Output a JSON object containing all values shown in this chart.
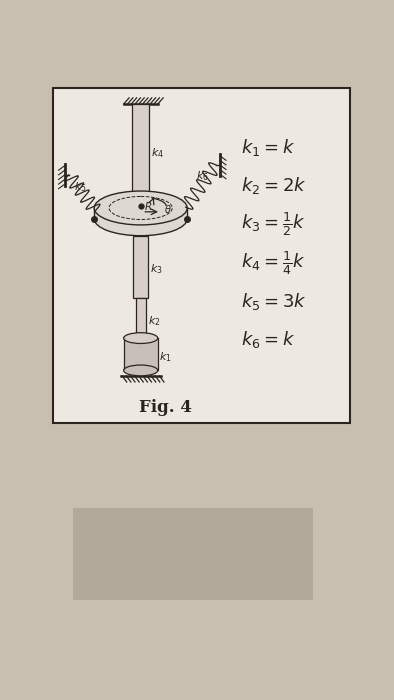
{
  "bg_color": "#c8bfb0",
  "panel_bg": "#ede8e0",
  "panel_shadow_color": "#9a9080",
  "fig_label": "Fig. 4",
  "line_color": "#2a2520",
  "shaft_fill": "#d8d0c8",
  "disk_fill": "#ddd8d0",
  "ground_fill": "#c8c0b8",
  "equations": [
    [
      "k_1 = k",
      "k_{1} = k"
    ],
    [
      "k_2 = 2k",
      "k_{2} = 2k"
    ],
    [
      "k_3 = \\frac{1}{2}k",
      "k_{3}=\\tfrac{1}{2}k"
    ],
    [
      "k_4 = \\frac{1}{4}k",
      "k_{4}=\\tfrac{1}{4}k"
    ],
    [
      "k_5 = 3k",
      "k_{5} = 3k"
    ],
    [
      "k_6 = k",
      "k_{6} = k"
    ]
  ],
  "eq_latex": [
    "$k_1 = k$",
    "$k_2 = 2k$",
    "$k_3 = \\frac{1}{2}k$",
    "$k_4 = \\frac{1}{4}k$",
    "$k_5 = 3k$",
    "$k_6 = k$"
  ]
}
